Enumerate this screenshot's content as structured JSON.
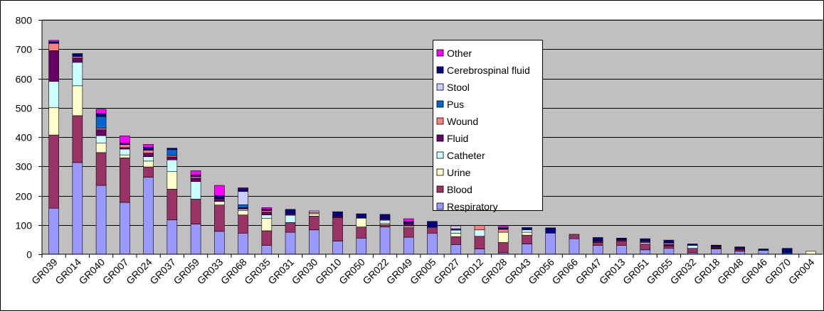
{
  "chart_data": {
    "type": "bar",
    "stacked": true,
    "title": "",
    "xlabel": "",
    "ylabel": "",
    "ylim": [
      0,
      800
    ],
    "yticks": [
      0,
      100,
      200,
      300,
      400,
      500,
      600,
      700,
      800
    ],
    "grid": true,
    "legend_position": "upper-middle",
    "categories": [
      "GR039",
      "GR014",
      "GR040",
      "GR007",
      "GR024",
      "GR037",
      "GR059",
      "GR033",
      "GR068",
      "GR035",
      "GR031",
      "GR030",
      "GR010",
      "GR050",
      "GR022",
      "GR049",
      "GR005",
      "GR027",
      "GR012",
      "GR028",
      "GR043",
      "GR056",
      "GR066",
      "GR047",
      "GR013",
      "GR051",
      "GR055",
      "GR032",
      "GR018",
      "GR048",
      "GR046",
      "GR070",
      "GR004"
    ],
    "series": [
      {
        "name": "Respiratory",
        "color": "#9999ff",
        "values": [
          157,
          313,
          235,
          177,
          263,
          117,
          103,
          78,
          72,
          30,
          75,
          83,
          45,
          55,
          93,
          58,
          72,
          33,
          18,
          5,
          35,
          72,
          53,
          30,
          30,
          15,
          20,
          5,
          18,
          10,
          13,
          0,
          0
        ]
      },
      {
        "name": "Blood",
        "color": "#993366",
        "values": [
          250,
          160,
          112,
          152,
          35,
          105,
          85,
          90,
          62,
          50,
          33,
          47,
          80,
          38,
          8,
          33,
          20,
          27,
          43,
          35,
          30,
          0,
          15,
          10,
          15,
          20,
          8,
          15,
          3,
          5,
          0,
          0,
          0
        ]
      },
      {
        "name": "Urine",
        "color": "#ffffcc",
        "values": [
          93,
          102,
          33,
          10,
          20,
          60,
          0,
          12,
          15,
          42,
          0,
          8,
          0,
          30,
          5,
          5,
          0,
          12,
          0,
          35,
          10,
          0,
          0,
          0,
          0,
          0,
          0,
          0,
          0,
          0,
          0,
          0,
          10
        ]
      },
      {
        "name": "Catheter",
        "color": "#ccffff",
        "values": [
          90,
          80,
          25,
          20,
          15,
          40,
          60,
          0,
          5,
          12,
          25,
          0,
          0,
          0,
          10,
          0,
          0,
          10,
          22,
          0,
          8,
          0,
          0,
          0,
          0,
          5,
          0,
          10,
          0,
          0,
          0,
          0,
          0
        ]
      },
      {
        "name": "Fluid",
        "color": "#660066",
        "values": [
          105,
          15,
          20,
          5,
          12,
          10,
          12,
          10,
          5,
          10,
          5,
          0,
          5,
          0,
          5,
          10,
          0,
          5,
          0,
          0,
          0,
          0,
          0,
          5,
          5,
          5,
          5,
          0,
          5,
          5,
          0,
          0,
          0
        ]
      },
      {
        "name": "Wound",
        "color": "#ff8080",
        "values": [
          25,
          5,
          5,
          10,
          10,
          5,
          5,
          0,
          0,
          5,
          0,
          5,
          0,
          0,
          0,
          0,
          0,
          0,
          15,
          10,
          0,
          0,
          0,
          0,
          0,
          0,
          5,
          0,
          0,
          0,
          0,
          0,
          0
        ]
      },
      {
        "name": "Pus",
        "color": "#0066cc",
        "values": [
          0,
          0,
          40,
          0,
          0,
          20,
          0,
          0,
          10,
          0,
          0,
          0,
          0,
          0,
          0,
          0,
          0,
          0,
          0,
          0,
          0,
          0,
          0,
          0,
          0,
          0,
          0,
          0,
          0,
          0,
          0,
          5,
          0
        ]
      },
      {
        "name": "Stool",
        "color": "#ccccff",
        "values": [
          0,
          0,
          0,
          0,
          0,
          0,
          0,
          0,
          45,
          0,
          0,
          5,
          0,
          0,
          0,
          0,
          0,
          10,
          0,
          0,
          0,
          0,
          0,
          0,
          0,
          0,
          0,
          0,
          0,
          0,
          0,
          0,
          0
        ]
      },
      {
        "name": "Cerebrospinal fluid",
        "color": "#000080",
        "values": [
          5,
          10,
          10,
          5,
          10,
          5,
          5,
          10,
          10,
          5,
          15,
          0,
          15,
          15,
          15,
          5,
          20,
          0,
          0,
          5,
          8,
          18,
          0,
          12,
          5,
          8,
          10,
          5,
          5,
          5,
          5,
          15,
          0
        ]
      },
      {
        "name": "Other",
        "color": "#ff00ff",
        "values": [
          5,
          0,
          15,
          25,
          10,
          0,
          15,
          35,
          3,
          5,
          0,
          0,
          0,
          0,
          0,
          10,
          0,
          0,
          0,
          5,
          0,
          0,
          0,
          0,
          0,
          0,
          0,
          0,
          0,
          0,
          0,
          0,
          0
        ]
      }
    ]
  }
}
